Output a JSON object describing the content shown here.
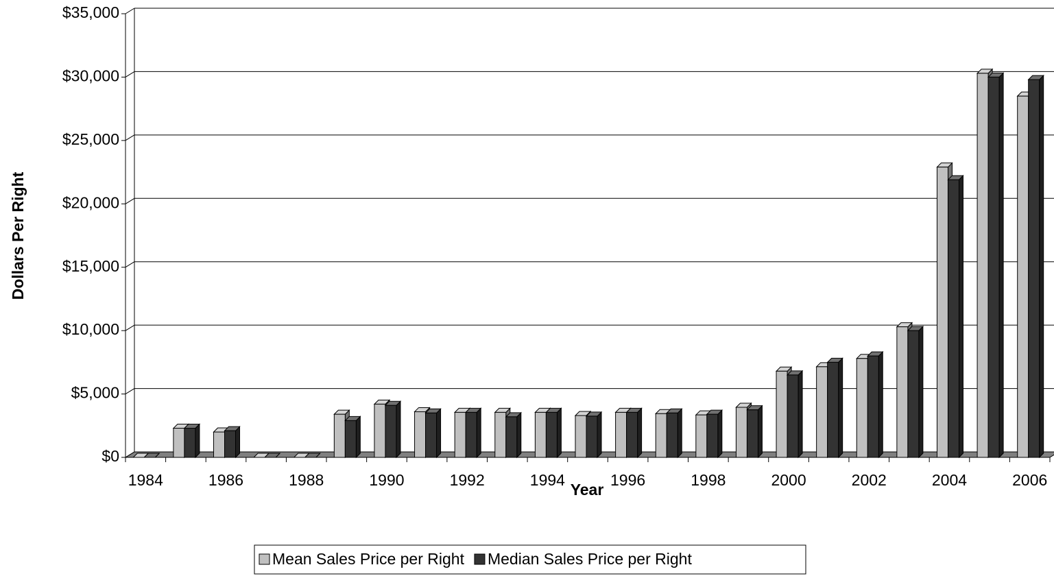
{
  "chart_data": {
    "type": "bar3d",
    "x_label": "Year",
    "y_label": "Dollars Per Right",
    "categories": [
      "1984",
      null,
      "1986",
      null,
      "1988",
      null,
      "1990",
      null,
      "1992",
      null,
      "1994",
      null,
      "1996",
      null,
      "1998",
      null,
      "2000",
      null,
      "2002",
      null,
      "2004",
      null,
      "2006"
    ],
    "series": [
      {
        "name": "Mean Sales Price per Right",
        "color": "#c0c0c0",
        "values": [
          0,
          2300,
          2000,
          0,
          0,
          3400,
          4200,
          3600,
          3550,
          3550,
          3550,
          3300,
          3550,
          3450,
          3350,
          3950,
          6800,
          7150,
          7800,
          10300,
          22900,
          30300,
          28500
        ]
      },
      {
        "name": "Median Sales Price per Right",
        "color": "#333333",
        "values": [
          0,
          2300,
          2100,
          0,
          0,
          2900,
          4100,
          3500,
          3550,
          3200,
          3550,
          3250,
          3550,
          3500,
          3400,
          3750,
          6500,
          7500,
          8000,
          10000,
          21900,
          30000,
          29800
        ]
      }
    ],
    "ylim": [
      0,
      35000
    ],
    "yticks": [
      {
        "value": 0,
        "label": "$0"
      },
      {
        "value": 5000,
        "label": "$5,000"
      },
      {
        "value": 10000,
        "label": "$10,000"
      },
      {
        "value": 15000,
        "label": "$15,000"
      },
      {
        "value": 20000,
        "label": "$20,000"
      },
      {
        "value": 25000,
        "label": "$25,000"
      },
      {
        "value": 30000,
        "label": "$30,000"
      },
      {
        "value": 35000,
        "label": "$35,000"
      }
    ],
    "grid": true,
    "legend": "bottom"
  }
}
